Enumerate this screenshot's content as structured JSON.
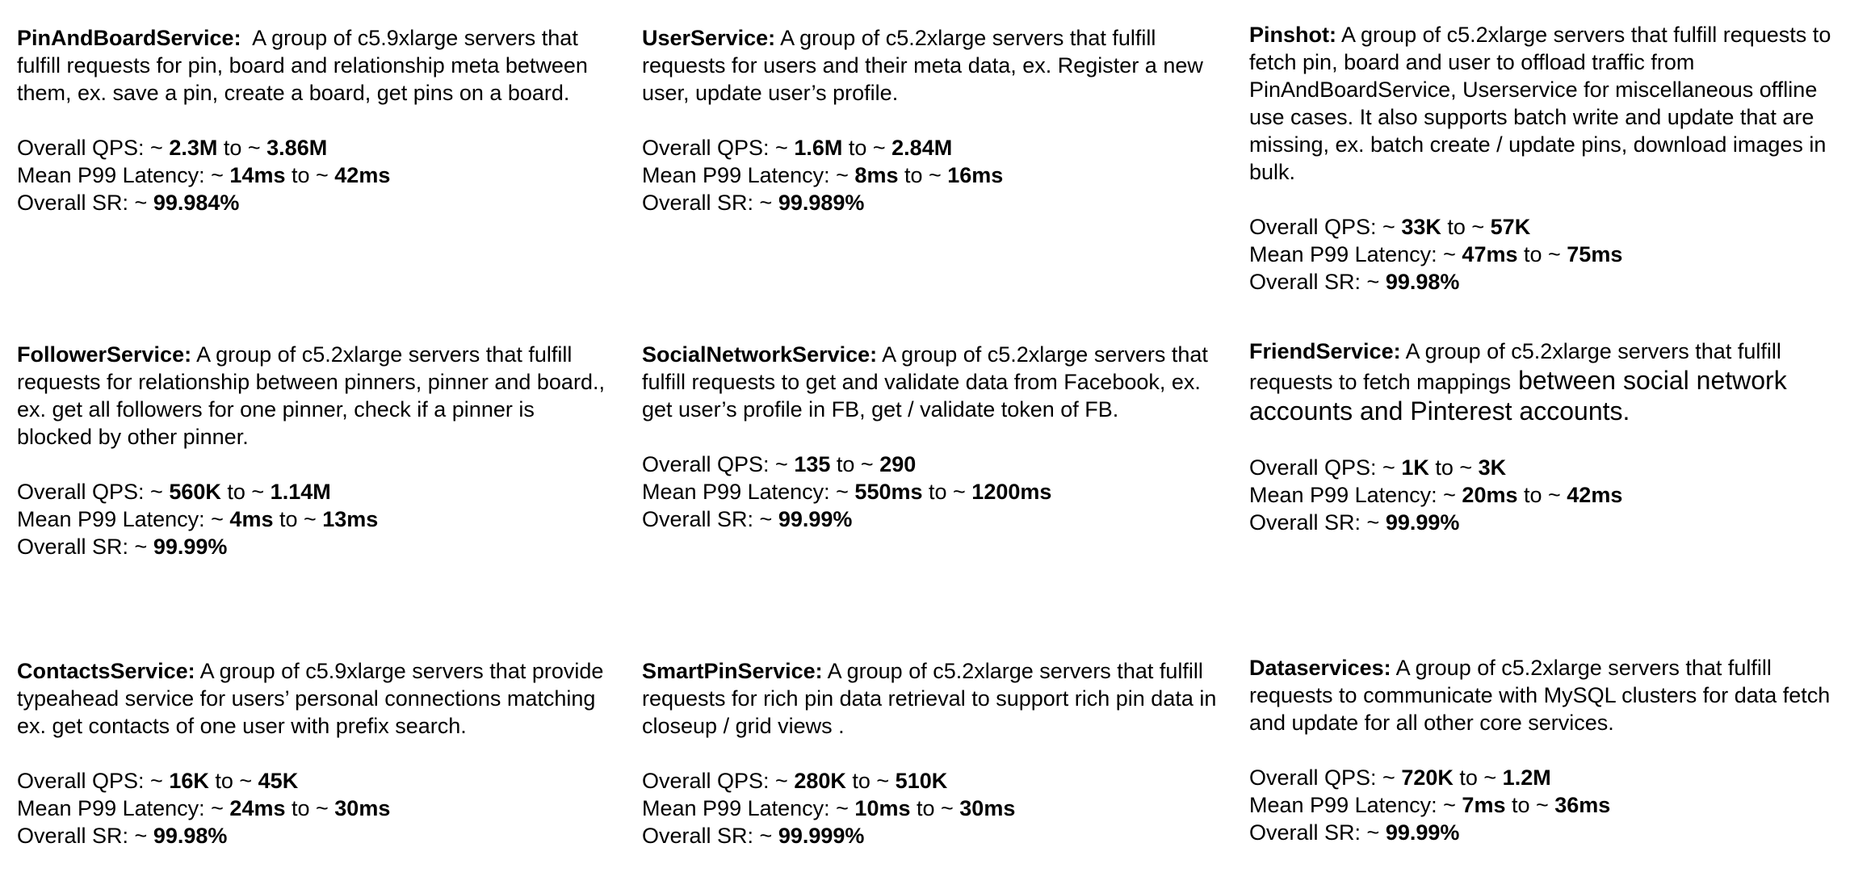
{
  "services": [
    {
      "name": "PinAndBoardService:",
      "desc": "A group of c5.9xlarge servers that fulfill requests for pin, board and relationship meta between them, ex. save a pin, create a board, get pins on a board.",
      "desc_extra": "",
      "metrics": [
        {
          "label": "Overall QPS: ~ ",
          "v1": "2.3M",
          "sep": " to ~ ",
          "v2": "3.86M"
        },
        {
          "label": "Mean P99 Latency:  ~ ",
          "v1": "14ms",
          "sep": " to ~ ",
          "v2": "42ms"
        },
        {
          "label": "Overall SR: ~ ",
          "v1": "99.984%",
          "sep": "",
          "v2": ""
        }
      ]
    },
    {
      "name": "UserService:",
      "desc": "A group of c5.2xlarge servers that fulfill requests for users and their meta data, ex. Register a new user, update user’s profile.",
      "desc_extra": "",
      "metrics": [
        {
          "label": "Overall QPS: ~ ",
          "v1": "1.6M",
          "sep": " to ~ ",
          "v2": "2.84M"
        },
        {
          "label": "Mean P99 Latency:  ~ ",
          "v1": "8ms",
          "sep": " to ~ ",
          "v2": "16ms"
        },
        {
          "label": "Overall SR: ~ ",
          "v1": "99.989%",
          "sep": "",
          "v2": ""
        }
      ]
    },
    {
      "name": "Pinshot:",
      "desc": "A group of c5.2xlarge servers that fulfill requests to fetch pin, board and user to offload traffic from PinAndBoardService, Userservice for miscellaneous offline use cases.  It also supports batch write and update that are missing, ex. batch create / update pins,  download images in bulk.",
      "desc_extra": "",
      "metrics": [
        {
          "label": "Overall QPS: ~ ",
          "v1": "33K",
          "sep": " to ~ ",
          "v2": "57K"
        },
        {
          "label": "Mean P99 Latency:  ~ ",
          "v1": "47ms",
          "sep": " to ~ ",
          "v2": "75ms"
        },
        {
          "label": "Overall SR: ~ ",
          "v1": "99.98%",
          "sep": "",
          "v2": ""
        }
      ]
    },
    {
      "name": "FollowerService:",
      "desc": " A group of c5.2xlarge servers that fulfill requests for relationship between pinners, pinner and board., ex. get all followers for one pinner, check if a pinner is blocked by other pinner.",
      "desc_extra": "",
      "metrics": [
        {
          "label": "Overall QPS: ~ ",
          "v1": "560K",
          "sep": " to ~ ",
          "v2": "1.14M"
        },
        {
          "label": "Mean P99 Latency:  ~ ",
          "v1": "4ms",
          "sep": " to ~ ",
          "v2": "13ms"
        },
        {
          "label": "Overall SR: ~ ",
          "v1": "99.99%",
          "sep": "",
          "v2": ""
        }
      ]
    },
    {
      "name": "SocialNetworkService:",
      "desc": "A group of c5.2xlarge servers that fulfill requests to get and validate data  from Facebook, ex. get user’s profile in FB, get / validate token of FB.",
      "desc_extra": "",
      "metrics": [
        {
          "label": "Overall QPS: ~ ",
          "v1": "135",
          "sep": " to ~ ",
          "v2": "290"
        },
        {
          "label": "Mean P99 Latency:  ~ ",
          "v1": "550ms",
          "sep": " to ~ ",
          "v2": "1200ms"
        },
        {
          "label": "Overall SR: ~ ",
          "v1": "99.99%",
          "sep": "",
          "v2": ""
        }
      ]
    },
    {
      "name": "FriendService:",
      "desc": "A group of c5.2xlarge servers that fulfill requests to fetch mappings",
      "desc_extra": " between social network accounts and Pinterest accounts.",
      "metrics": [
        {
          "label": "Overall QPS: ~ ",
          "v1": "1K",
          "sep": " to ~ ",
          "v2": "3K"
        },
        {
          "label": "Mean P99 Latency:  ~ ",
          "v1": "20ms",
          "sep": " to ~ ",
          "v2": "42ms"
        },
        {
          "label": "Overall SR: ~ ",
          "v1": "99.99%",
          "sep": "",
          "v2": ""
        }
      ]
    },
    {
      "name": "ContactsService:",
      "desc": " A group of c5.9xlarge servers that provide typeahead service for users’ personal connections matching ex. get contacts of one user with prefix search.",
      "desc_extra": "",
      "metrics": [
        {
          "label": "Overall QPS: ~ ",
          "v1": "16K",
          "sep": " to ~ ",
          "v2": "45K"
        },
        {
          "label": "Mean P99 Latency:  ~ ",
          "v1": "24ms",
          "sep": " to ~ ",
          "v2": "30ms"
        },
        {
          "label": "Overall SR: ~ ",
          "v1": "99.98%",
          "sep": "",
          "v2": ""
        }
      ]
    },
    {
      "name": "SmartPinService:",
      "desc": "A group of c5.2xlarge servers that fulfill requests for rich pin data retrieval to support  rich pin data in closeup / grid views .",
      "desc_extra": "",
      "metrics": [
        {
          "label": "Overall QPS: ~ ",
          "v1": "280K",
          "sep": " to ~ ",
          "v2": "510K"
        },
        {
          "label": "Mean P99 Latency:  ~ ",
          "v1": "10ms",
          "sep": " to ~ ",
          "v2": "30ms"
        },
        {
          "label": "Overall SR: ~ ",
          "v1": "99.999%",
          "sep": "",
          "v2": ""
        }
      ]
    },
    {
      "name": "Dataservices:",
      "desc": "A group of c5.2xlarge servers that fulfill requests to communicate with MySQL clusters for data fetch and update for all other core services.",
      "desc_extra": "",
      "metrics": [
        {
          "label": "Overall QPS: ~ ",
          "v1": "720K",
          "sep": " to ~ ",
          "v2": "1.2M"
        },
        {
          "label": "Mean P99 Latency:  ~ ",
          "v1": "7ms",
          "sep": " to ~ ",
          "v2": "36ms"
        },
        {
          "label": "Overall SR: ~ ",
          "v1": "99.99%",
          "sep": "",
          "v2": ""
        }
      ]
    }
  ]
}
